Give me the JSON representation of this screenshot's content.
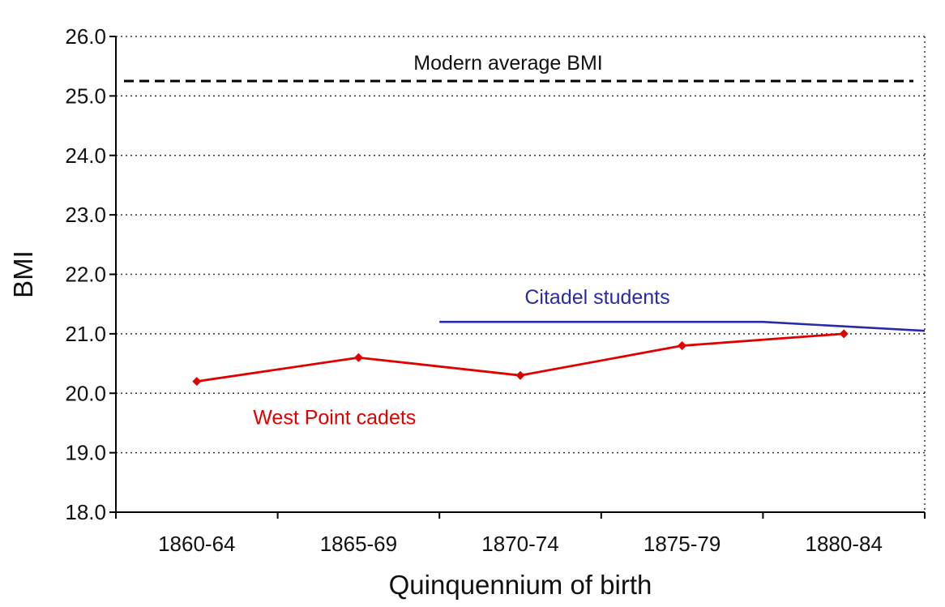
{
  "chart_data": {
    "type": "line",
    "xlabel": "Quinquennium of birth",
    "ylabel": "BMI",
    "categories": [
      "1860-64",
      "1865-69",
      "1870-74",
      "1875-79",
      "1880-84"
    ],
    "ylim": [
      18.0,
      26.0
    ],
    "yticks": [
      "18.0",
      "19.0",
      "20.0",
      "21.0",
      "22.0",
      "23.0",
      "24.0",
      "25.0",
      "26.0"
    ],
    "grid": "dotted horizontal",
    "series": [
      {
        "name": "West Point cadets",
        "color": "#e00000",
        "marker": "diamond",
        "values": [
          20.2,
          20.6,
          20.3,
          20.8,
          21.0
        ]
      },
      {
        "name": "Citadel students",
        "color": "#2a2aa8",
        "marker": "none",
        "points": [
          {
            "x": "1870-74 start",
            "y": 21.2
          },
          {
            "x": "1875-79 end",
            "y": 21.2
          },
          {
            "x": "1880-84 end",
            "y": 21.05
          }
        ]
      }
    ],
    "reference_line": {
      "label": "Modern average BMI",
      "value": 25.25,
      "style": "dashed",
      "color": "#000000"
    }
  }
}
